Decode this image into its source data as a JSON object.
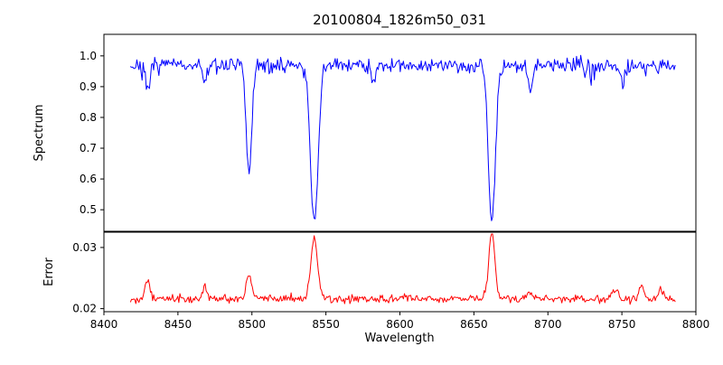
{
  "figure": {
    "title": "20100804_1826m50_031",
    "xlabel": "Wavelength",
    "background_color": "#ffffff",
    "axes_color": "#000000",
    "x_ticks": [
      {
        "v": 8400,
        "label": "8400"
      },
      {
        "v": 8450,
        "label": "8450"
      },
      {
        "v": 8500,
        "label": "8500"
      },
      {
        "v": 8550,
        "label": "8550"
      },
      {
        "v": 8600,
        "label": "8600"
      },
      {
        "v": 8650,
        "label": "8650"
      },
      {
        "v": 8700,
        "label": "8700"
      },
      {
        "v": 8750,
        "label": "8750"
      },
      {
        "v": 8800,
        "label": "8800"
      }
    ]
  },
  "chart_data": [
    {
      "type": "line",
      "name": "spectrum",
      "ylabel": "Spectrum",
      "line_color": "#0000ff",
      "grid": false,
      "legend": null,
      "xlim": [
        8400,
        8800
      ],
      "ylim": [
        0.43,
        1.07
      ],
      "x_data_range": [
        8418,
        8786
      ],
      "y_ticks": [
        {
          "v": 0.5,
          "label": "0.5"
        },
        {
          "v": 0.6,
          "label": "0.6"
        },
        {
          "v": 0.7,
          "label": "0.7"
        },
        {
          "v": 0.8,
          "label": "0.8"
        },
        {
          "v": 0.9,
          "label": "0.9"
        },
        {
          "v": 1.0,
          "label": "1.0"
        }
      ],
      "continuum_level": 0.97,
      "noise_sigma": 0.012,
      "absorption_lines": [
        {
          "center": 8429.5,
          "min": 0.885,
          "width": 1.5
        },
        {
          "center": 8468.0,
          "min": 0.915,
          "width": 1.3
        },
        {
          "center": 8498.0,
          "min": 0.63,
          "width": 1.9
        },
        {
          "center": 8542.1,
          "min": 0.455,
          "width": 2.6
        },
        {
          "center": 8582.0,
          "min": 0.925,
          "width": 1.3
        },
        {
          "center": 8662.1,
          "min": 0.455,
          "width": 2.3
        },
        {
          "center": 8688.0,
          "min": 0.885,
          "width": 1.5
        },
        {
          "center": 8750.5,
          "min": 0.91,
          "width": 1.4
        }
      ]
    },
    {
      "type": "line",
      "name": "error",
      "ylabel": "Error",
      "line_color": "#ff0000",
      "grid": false,
      "legend": null,
      "xlim": [
        8400,
        8800
      ],
      "ylim": [
        0.0195,
        0.0325
      ],
      "x_data_range": [
        8418,
        8786
      ],
      "y_ticks": [
        {
          "v": 0.02,
          "label": "0.02"
        },
        {
          "v": 0.03,
          "label": "0.03"
        }
      ],
      "baseline_level": 0.0216,
      "noise_sigma": 0.0003,
      "error_peaks": [
        {
          "center": 8429.5,
          "height": 0.003,
          "width": 1.6
        },
        {
          "center": 8468.0,
          "height": 0.002,
          "width": 1.4
        },
        {
          "center": 8498.0,
          "height": 0.0042,
          "width": 1.8
        },
        {
          "center": 8542.1,
          "height": 0.0098,
          "width": 2.3
        },
        {
          "center": 8662.1,
          "height": 0.0113,
          "width": 2.0
        },
        {
          "center": 8688.0,
          "height": 0.0012,
          "width": 1.6
        },
        {
          "center": 8745.0,
          "height": 0.0013,
          "width": 2.2
        },
        {
          "center": 8763.0,
          "height": 0.0022,
          "width": 1.6
        },
        {
          "center": 8776.0,
          "height": 0.0018,
          "width": 1.4
        }
      ]
    }
  ]
}
